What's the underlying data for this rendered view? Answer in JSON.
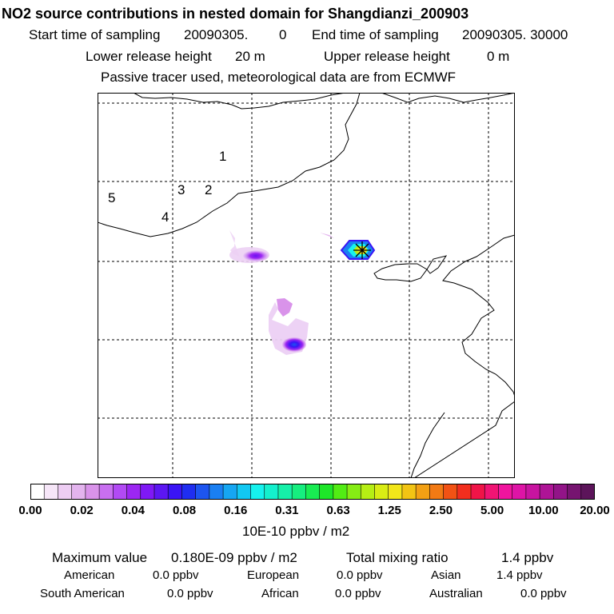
{
  "header": {
    "title": "NO2 source contributions in nested domain for Shangdianzi_200903",
    "start_label": "Start time of sampling",
    "start_value": "20090305.",
    "start_hour": "0",
    "end_label": "End time of sampling",
    "end_value": "20090305. 30000",
    "lower_label": "Lower release height",
    "lower_value": "20 m",
    "upper_label": "Upper release height",
    "upper_value": "0 m",
    "note": "Passive tracer used, meteorological data are from ECMWF"
  },
  "map": {
    "region_labels": [
      "1",
      "2",
      "3",
      "4",
      "5"
    ],
    "receptor_marker": "star-cross"
  },
  "colorbar": {
    "ticks": [
      "0.00",
      "0.02",
      "0.04",
      "0.08",
      "0.16",
      "0.31",
      "0.63",
      "1.25",
      "2.50",
      "5.00",
      "10.00",
      "20.00"
    ],
    "colors": [
      "#ffffff",
      "#f6e6f8",
      "#edcdf3",
      "#e3b4ee",
      "#d993ea",
      "#c86ff0",
      "#b24af4",
      "#9c27f2",
      "#7f19f5",
      "#5c17f2",
      "#3a14f5",
      "#1f2ef0",
      "#1d55f0",
      "#1a7ff2",
      "#16a6f2",
      "#12c8f2",
      "#16f2ee",
      "#14f0cd",
      "#16f0a9",
      "#16ee7f",
      "#18ec52",
      "#1ee629",
      "#52ec14",
      "#86ec14",
      "#b6ee14",
      "#d9ec14",
      "#f2e61a",
      "#f2c414",
      "#f2a014",
      "#f27a14",
      "#f25214",
      "#f22e1e",
      "#f01448",
      "#f01474",
      "#f0149e",
      "#de14a6",
      "#c814a0",
      "#ae1496",
      "#921488",
      "#761470",
      "#5c145a"
    ],
    "units": "10E-10 ppbv / m2"
  },
  "summary": {
    "max_label": "Maximum value",
    "max_value": "0.180E-09 ppbv / m2",
    "total_label": "Total mixing ratio",
    "total_value": "1.4 ppbv",
    "regions": [
      {
        "name": "American",
        "value": "0.0 ppbv"
      },
      {
        "name": "European",
        "value": "0.0 ppbv"
      },
      {
        "name": "Asian",
        "value": "1.4 ppbv"
      },
      {
        "name": "South American",
        "value": "0.0 ppbv"
      },
      {
        "name": "African",
        "value": "0.0 ppbv"
      },
      {
        "name": "Australian",
        "value": "0.0 ppbv"
      }
    ]
  }
}
